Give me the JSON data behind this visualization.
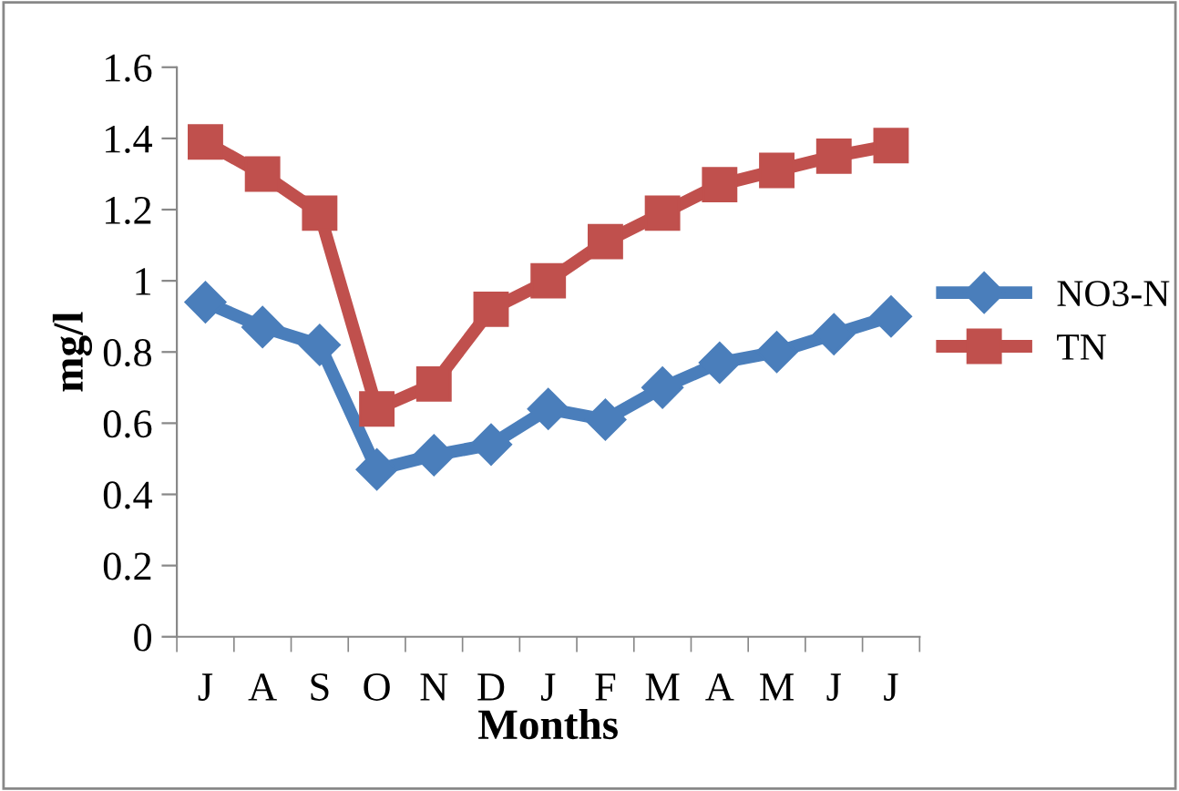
{
  "chart_data": {
    "type": "line",
    "xlabel": "Months",
    "ylabel": "mg/l",
    "categories": [
      "J",
      "A",
      "S",
      "O",
      "N",
      "D",
      "J",
      "F",
      "M",
      "A",
      "M",
      "J",
      "J"
    ],
    "series": [
      {
        "name": "NO3-N",
        "color": "#4a7ebb",
        "marker": "diamond",
        "values": [
          0.94,
          0.87,
          0.82,
          0.47,
          0.51,
          0.54,
          0.64,
          0.61,
          0.7,
          0.77,
          0.8,
          0.85,
          0.9
        ]
      },
      {
        "name": "TN",
        "color": "#c0504d",
        "marker": "square",
        "values": [
          1.39,
          1.3,
          1.19,
          0.64,
          0.71,
          0.92,
          1.0,
          1.11,
          1.19,
          1.27,
          1.31,
          1.35,
          1.38
        ]
      }
    ],
    "ylim": [
      0,
      1.6
    ],
    "yticks": [
      0,
      0.2,
      0.4,
      0.6,
      0.8,
      1,
      1.2,
      1.4,
      1.6
    ],
    "grid": false,
    "legend": "right"
  }
}
